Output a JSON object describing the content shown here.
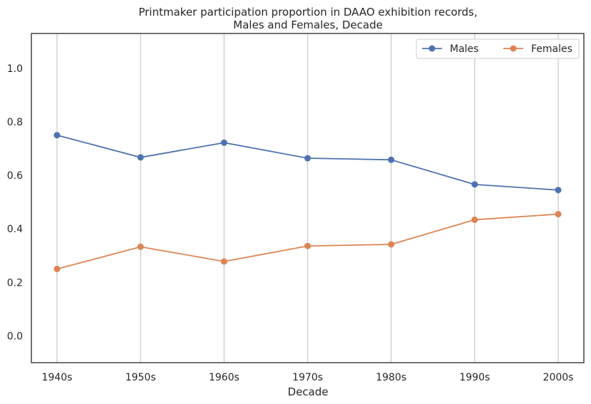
{
  "chart_data": {
    "type": "line",
    "title_line1": "Printmaker participation proportion in DAAO exhibition records,",
    "title_line2": "Males and Females, Decade",
    "xlabel": "Decade",
    "ylabel": "",
    "categories": [
      "1940s",
      "1950s",
      "1960s",
      "1970s",
      "1980s",
      "1990s",
      "2000s"
    ],
    "ylim": [
      -0.1,
      1.13
    ],
    "yticks": [
      0.0,
      0.2,
      0.4,
      0.6,
      0.8,
      1.0
    ],
    "ytick_labels": [
      "0.0",
      "0.2",
      "0.4",
      "0.6",
      "0.8",
      "1.0"
    ],
    "grid": "vertical",
    "legend_position": "top-right",
    "series": [
      {
        "name": "Males",
        "color": "#4c72b0",
        "values": [
          0.75,
          0.667,
          0.722,
          0.664,
          0.658,
          0.566,
          0.545
        ]
      },
      {
        "name": "Females",
        "color": "#dd8452",
        "values": [
          0.25,
          0.333,
          0.278,
          0.336,
          0.342,
          0.434,
          0.455
        ]
      }
    ]
  }
}
